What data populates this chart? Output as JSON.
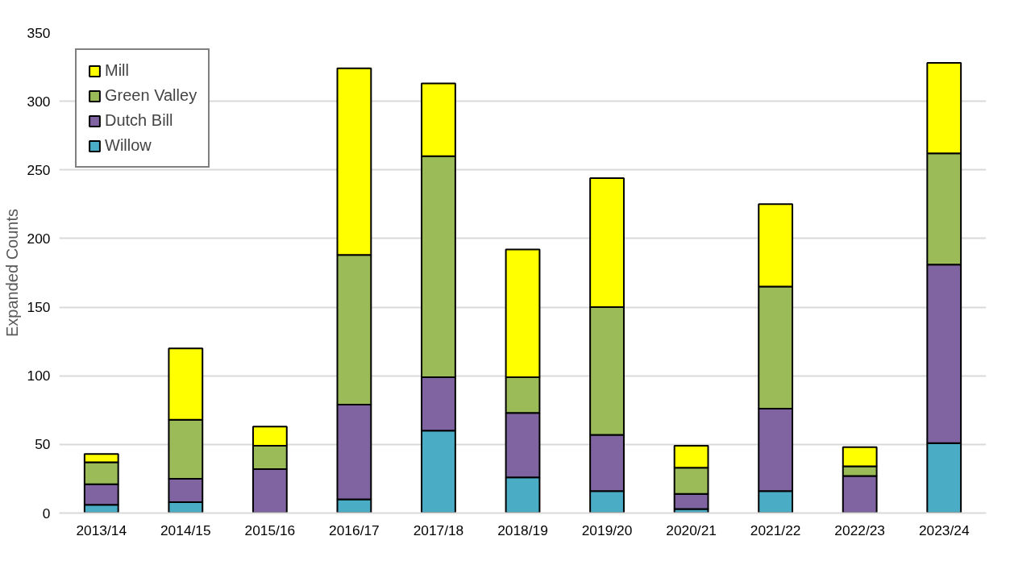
{
  "chart_data": {
    "type": "bar",
    "stacked": true,
    "ylabel": "Expanded Counts",
    "categories": [
      "2013/14",
      "2014/15",
      "2015/16",
      "2016/17",
      "2017/18",
      "2018/19",
      "2019/20",
      "2020/21",
      "2021/22",
      "2022/23",
      "2023/24"
    ],
    "series": [
      {
        "name": "Willow",
        "color": "#4bacc6",
        "values": [
          6,
          8,
          0,
          10,
          60,
          26,
          16,
          3,
          16,
          0,
          51
        ]
      },
      {
        "name": "Dutch Bill",
        "color": "#8064a2",
        "values": [
          15,
          17,
          32,
          69,
          39,
          47,
          41,
          11,
          60,
          27,
          130
        ]
      },
      {
        "name": "Green Valley",
        "color": "#9bbb59",
        "values": [
          16,
          43,
          17,
          109,
          161,
          26,
          93,
          19,
          89,
          7,
          81
        ]
      },
      {
        "name": "Mill",
        "color": "#ffff00",
        "values": [
          6,
          52,
          14,
          136,
          53,
          93,
          94,
          16,
          60,
          14,
          66
        ]
      }
    ],
    "ylim": [
      0,
      350
    ],
    "yticks": [
      0,
      50,
      100,
      150,
      200,
      250,
      300,
      350
    ],
    "grid": "y",
    "legend": "top left"
  }
}
